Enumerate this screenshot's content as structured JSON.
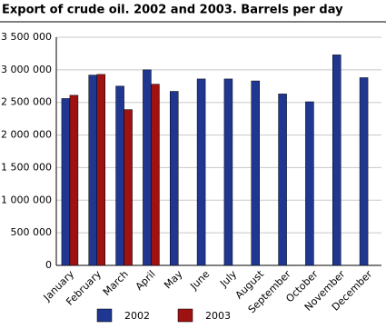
{
  "chart_data": {
    "type": "bar",
    "title": "Export of crude oil. 2002 and 2003. Barrels per day",
    "categories": [
      "January",
      "February",
      "March",
      "April",
      "May",
      "June",
      "July",
      "August",
      "September",
      "October",
      "November",
      "December"
    ],
    "series": [
      {
        "name": "2002",
        "color": "#1f3791",
        "values": [
          2560000,
          2920000,
          2750000,
          3000000,
          2670000,
          2860000,
          2860000,
          2830000,
          2630000,
          2510000,
          3230000,
          2880000
        ]
      },
      {
        "name": "2003",
        "color": "#9e1212",
        "values": [
          2610000,
          2930000,
          2390000,
          2780000,
          null,
          null,
          null,
          null,
          null,
          null,
          null,
          null
        ]
      }
    ],
    "ylim": [
      0,
      3500000
    ],
    "yticks": [
      0,
      {
        "value": 500000,
        "label": "500 000"
      },
      {
        "value": 1000000,
        "label": "1 000 000"
      },
      {
        "value": 1500000,
        "label": "1 500 000"
      },
      {
        "value": 2000000,
        "label": "2 000 000"
      },
      {
        "value": 2500000,
        "label": "2 500 000"
      },
      {
        "value": 3000000,
        "label": "3 000 000"
      },
      {
        "value": 3500000,
        "label": "3 500 000"
      }
    ],
    "grid": true,
    "legend": "bottom"
  }
}
